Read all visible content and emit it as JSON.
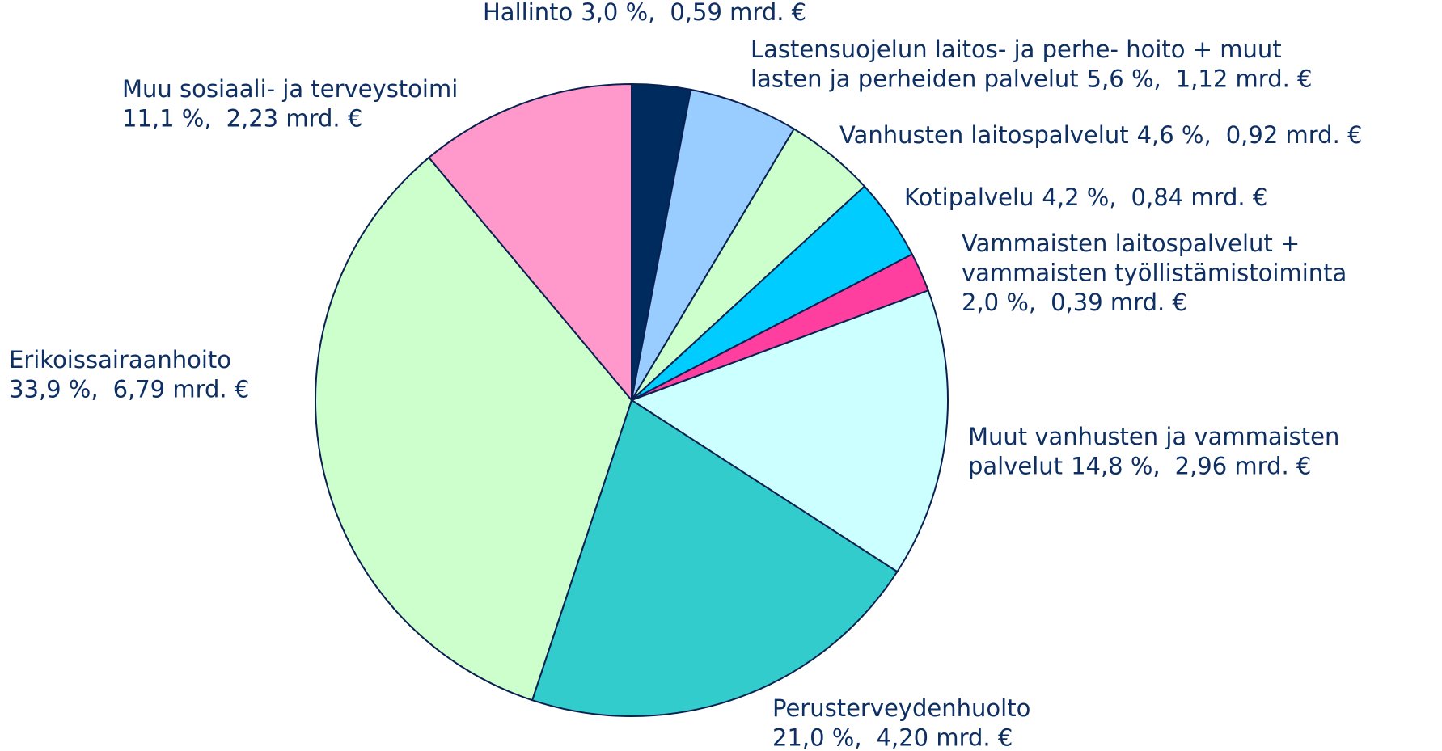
{
  "chart_data": {
    "type": "pie",
    "categories": [
      [
        "Hallinto"
      ],
      [
        "Lastensuojelun laitos- ja perhe- hoito + muut",
        "lasten ja perheiden palvelut"
      ],
      [
        "Vanhusten laitospalvelut"
      ],
      [
        "Kotipalvelu"
      ],
      [
        "Vammaisten laitospalvelut +",
        "vammaisten työllistämistoiminta"
      ],
      [
        "Muut vanhusten ja vammaisten",
        "palvelut"
      ],
      [
        "Perusterveydenhuolto"
      ],
      [
        "Erikoissairaanhoito"
      ],
      [
        "Muu sosiaali- ja terveystoimi"
      ]
    ],
    "values": [
      3.0,
      5.6,
      4.6,
      4.2,
      2.0,
      14.8,
      21.0,
      33.9,
      11.1
    ],
    "value_labels": [
      "3,0 %,",
      "5,6 %,",
      "4,6 %,",
      "4,2 %,",
      "2,0 %,",
      "14,8 %,",
      "21,0 %,",
      "33,9 %,",
      "11,1 %,"
    ],
    "amount_labels": [
      "0,59 mrd. €",
      "1,12 mrd. €",
      "0,92 mrd. €",
      "0,84 mrd. €",
      "0,39 mrd. €",
      "2,96 mrd. €",
      "4,20 mrd. €",
      "6,79 mrd. €",
      "2,23 mrd. €"
    ],
    "colors": [
      "#002b5e",
      "#99ccff",
      "#ccffcc",
      "#00ccff",
      "#ff3f9f",
      "#ccffff",
      "#33cccc",
      "#ccffcc",
      "#ff99cc"
    ]
  }
}
